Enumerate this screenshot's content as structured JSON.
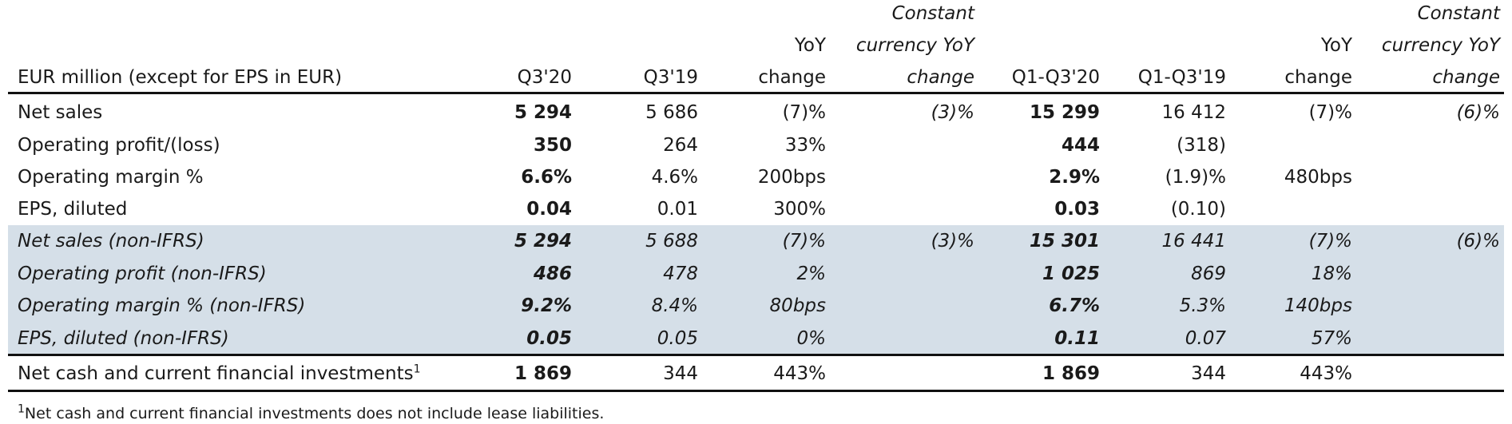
{
  "table": {
    "label_header": "EUR million (except for EPS in EUR)",
    "columns": [
      [
        "Q3'20"
      ],
      [
        "Q3'19"
      ],
      [
        "YoY",
        "change"
      ],
      [
        "Constant",
        "currency YoY",
        "change"
      ],
      [
        "Q1-Q3'20"
      ],
      [
        "Q1-Q3'19"
      ],
      [
        "YoY",
        "change"
      ],
      [
        "Constant",
        "currency YoY",
        "change"
      ]
    ],
    "ifrs_rows": [
      {
        "label": "Net sales",
        "values": [
          "5 294",
          "5 686",
          "(7)%",
          "(3)%",
          "15 299",
          "16 412",
          "(7)%",
          "(6)%"
        ]
      },
      {
        "label": "Operating profit/(loss)",
        "values": [
          "350",
          "264",
          "33%",
          null,
          "444",
          "(318)",
          null,
          null
        ]
      },
      {
        "label": "Operating margin %",
        "values": [
          "6.6%",
          "4.6%",
          "200bps",
          null,
          "2.9%",
          "(1.9)%",
          "480bps",
          null
        ]
      },
      {
        "label": "EPS, diluted",
        "values": [
          "0.04",
          "0.01",
          "300%",
          null,
          "0.03",
          "(0.10)",
          null,
          null
        ]
      }
    ],
    "non_ifrs_rows": [
      {
        "label": "Net sales (non-IFRS)",
        "values": [
          "5 294",
          "5 688",
          "(7)%",
          "(3)%",
          "15 301",
          "16 441",
          "(7)%",
          "(6)%"
        ]
      },
      {
        "label": "Operating profit (non-IFRS)",
        "values": [
          "486",
          "478",
          "2%",
          null,
          "1 025",
          "869",
          "18%",
          null
        ]
      },
      {
        "label": "Operating margin % (non-IFRS)",
        "values": [
          "9.2%",
          "8.4%",
          "80bps",
          null,
          "6.7%",
          "5.3%",
          "140bps",
          null
        ]
      },
      {
        "label": "EPS, diluted (non-IFRS)",
        "values": [
          "0.05",
          "0.05",
          "0%",
          null,
          "0.11",
          "0.07",
          "57%",
          null
        ]
      }
    ],
    "cash_row": {
      "label": "Net cash and current financial investments",
      "footnote_mark": "1",
      "values": [
        "1 869",
        "344",
        "443%",
        null,
        "1 869",
        "344",
        "443%",
        null
      ]
    }
  },
  "footnote": {
    "mark": "1",
    "text": "Net cash and current financial investments does not include lease liabilities."
  }
}
